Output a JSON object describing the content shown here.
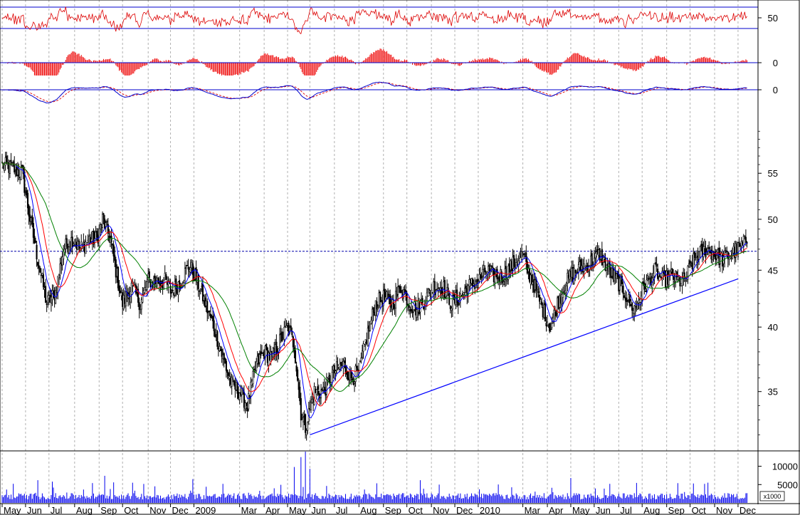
{
  "chart_data": {
    "type": "candlestick",
    "x_months": [
      {
        "label": "May",
        "day": 0
      },
      {
        "label": "Jun",
        "day": 21
      },
      {
        "label": "Jul",
        "day": 42
      },
      {
        "label": "Aug",
        "day": 65
      },
      {
        "label": "Sep",
        "day": 87
      },
      {
        "label": "Oct",
        "day": 108
      },
      {
        "label": "Nov",
        "day": 131
      },
      {
        "label": "Dec",
        "day": 151
      },
      {
        "label": "2009",
        "day": 172
      },
      {
        "label": "Mar",
        "day": 213
      },
      {
        "label": "Apr",
        "day": 235
      },
      {
        "label": "May",
        "day": 256
      },
      {
        "label": "Jun",
        "day": 276
      },
      {
        "label": "Jul",
        "day": 298
      },
      {
        "label": "Aug",
        "day": 320
      },
      {
        "label": "Sep",
        "day": 342
      },
      {
        "label": "Oct",
        "day": 363
      },
      {
        "label": "Nov",
        "day": 385
      },
      {
        "label": "Dec",
        "day": 406
      },
      {
        "label": "2010",
        "day": 427
      },
      {
        "label": "Mar",
        "day": 467
      },
      {
        "label": "Apr",
        "day": 489
      },
      {
        "label": "May",
        "day": 510
      },
      {
        "label": "Jun",
        "day": 531
      },
      {
        "label": "Jul",
        "day": 553
      },
      {
        "label": "Aug",
        "day": 574
      },
      {
        "label": "Sep",
        "day": 596
      },
      {
        "label": "Oct",
        "day": 617
      },
      {
        "label": "Nov",
        "day": 639
      },
      {
        "label": "Dec",
        "day": 660
      }
    ],
    "price_ticks": [
      35,
      40,
      45,
      50,
      55
    ],
    "price_scale": "log",
    "price_ylim": [
      31,
      62
    ],
    "close_anchors": [
      [
        0,
        56
      ],
      [
        10,
        55.5
      ],
      [
        18,
        55
      ],
      [
        25,
        50
      ],
      [
        32,
        46
      ],
      [
        40,
        42
      ],
      [
        48,
        43
      ],
      [
        55,
        47
      ],
      [
        63,
        48
      ],
      [
        70,
        47
      ],
      [
        78,
        48
      ],
      [
        85,
        48
      ],
      [
        90,
        50
      ],
      [
        97,
        48
      ],
      [
        102,
        45
      ],
      [
        108,
        42
      ],
      [
        116,
        43.5
      ],
      [
        124,
        42
      ],
      [
        131,
        44
      ],
      [
        138,
        44
      ],
      [
        146,
        44
      ],
      [
        152,
        43
      ],
      [
        160,
        44
      ],
      [
        168,
        45.5
      ],
      [
        175,
        44
      ],
      [
        182,
        42
      ],
      [
        190,
        40
      ],
      [
        198,
        37.5
      ],
      [
        206,
        35.5
      ],
      [
        213,
        35
      ],
      [
        220,
        34
      ],
      [
        228,
        37
      ],
      [
        235,
        38
      ],
      [
        242,
        37.5
      ],
      [
        250,
        39
      ],
      [
        256,
        40
      ],
      [
        262,
        38.5
      ],
      [
        268,
        33.5
      ],
      [
        272,
        32.5
      ],
      [
        280,
        35
      ],
      [
        288,
        35
      ],
      [
        298,
        36.5
      ],
      [
        306,
        37
      ],
      [
        313,
        36
      ],
      [
        320,
        36.5
      ],
      [
        328,
        39.5
      ],
      [
        335,
        42
      ],
      [
        342,
        42.5
      ],
      [
        350,
        42
      ],
      [
        358,
        43.5
      ],
      [
        365,
        42
      ],
      [
        372,
        41.5
      ],
      [
        380,
        42.5
      ],
      [
        387,
        43.5
      ],
      [
        395,
        43.5
      ],
      [
        403,
        42
      ],
      [
        410,
        42.5
      ],
      [
        418,
        43.5
      ],
      [
        427,
        44
      ],
      [
        434,
        45
      ],
      [
        441,
        44.5
      ],
      [
        450,
        44.5
      ],
      [
        458,
        45.5
      ],
      [
        467,
        46.5
      ],
      [
        471,
        45
      ],
      [
        476,
        44
      ],
      [
        481,
        42.5
      ],
      [
        487,
        41
      ],
      [
        492,
        40
      ],
      [
        498,
        42
      ],
      [
        504,
        43.5
      ],
      [
        510,
        44.5
      ],
      [
        516,
        45
      ],
      [
        524,
        45.5
      ],
      [
        531,
        46
      ],
      [
        536,
        46.5
      ],
      [
        544,
        45
      ],
      [
        552,
        44
      ],
      [
        558,
        43
      ],
      [
        563,
        42
      ],
      [
        568,
        41.5
      ],
      [
        573,
        43
      ],
      [
        579,
        44
      ],
      [
        586,
        45
      ],
      [
        593,
        44
      ],
      [
        600,
        44.5
      ],
      [
        607,
        44
      ],
      [
        612,
        44
      ],
      [
        618,
        45.5
      ],
      [
        625,
        46.5
      ],
      [
        632,
        47
      ],
      [
        639,
        46.5
      ],
      [
        646,
        46
      ],
      [
        653,
        46.5
      ],
      [
        660,
        47
      ],
      [
        665,
        47.5
      ],
      [
        668,
        48
      ]
    ],
    "moving_averages": [
      {
        "color": "#0000ff",
        "period": 10
      },
      {
        "color": "#ff0000",
        "period": 20
      },
      {
        "color": "#008000",
        "period": 40
      }
    ],
    "support_line": {
      "from_day": 276,
      "from_price": 32.0,
      "to_day": 660,
      "to_price": 44.2,
      "color": "#0000ff"
    },
    "reference_price": 46.8,
    "indicators": [
      {
        "id": "osc",
        "ticks": [
          {
            "value": "50"
          }
        ],
        "color": "#dd0000"
      },
      {
        "id": "hist",
        "ticks": [
          {
            "value": "0"
          }
        ],
        "color": "#ee0000"
      },
      {
        "id": "macd",
        "ticks": [
          {
            "value": "0"
          }
        ],
        "colors": [
          "#0000cc",
          "#dd0000"
        ]
      }
    ],
    "volume": {
      "ticks": [
        {
          "label": "5000",
          "value": 5000
        },
        {
          "label": "10000",
          "value": 10000
        }
      ],
      "unit": "x1000",
      "color": "#0000ee",
      "ylim": [
        0,
        14000
      ],
      "base": 1900,
      "spikes": [
        {
          "day": 32,
          "value": 6200
        },
        {
          "day": 45,
          "value": 5800
        },
        {
          "day": 92,
          "value": 7400
        },
        {
          "day": 100,
          "value": 5600
        },
        {
          "day": 171,
          "value": 6500
        },
        {
          "day": 198,
          "value": 5200
        },
        {
          "day": 262,
          "value": 9800
        },
        {
          "day": 268,
          "value": 12500
        },
        {
          "day": 272,
          "value": 14000
        },
        {
          "day": 276,
          "value": 9300
        },
        {
          "day": 375,
          "value": 6200
        },
        {
          "day": 392,
          "value": 5000
        },
        {
          "day": 510,
          "value": 6800
        },
        {
          "day": 545,
          "value": 5200
        },
        {
          "day": 620,
          "value": 5300
        }
      ]
    },
    "colors": {
      "bull": "#ffffff",
      "bear": "#000000",
      "grid": "#b0b0b0",
      "frame": "#000000"
    }
  }
}
